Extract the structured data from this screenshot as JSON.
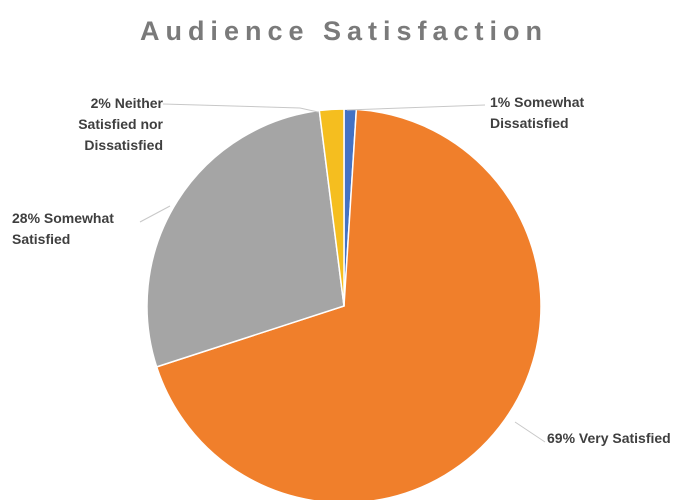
{
  "chart_data": {
    "type": "pie",
    "title": "Audience Satisfaction",
    "slices": [
      {
        "name": "Very Satisfied",
        "value": 69,
        "color": "#f07f2b",
        "label_lines": [
          "69% Very Satisfied"
        ]
      },
      {
        "name": "Somewhat Satisfied",
        "value": 28,
        "color": "#a5a5a5",
        "label_lines": [
          "28% Somewhat",
          "Satisfied"
        ]
      },
      {
        "name": "Neither Satisfied nor Dissatisfied",
        "value": 2,
        "color": "#f5be1f",
        "label_lines": [
          "2% Neither",
          "Satisfied nor",
          "Dissatisfied"
        ]
      },
      {
        "name": "Somewhat Dissatisfied",
        "value": 1,
        "color": "#4472c4",
        "label_lines": [
          "1% Somewhat",
          "Dissatisfied"
        ]
      }
    ],
    "legend": "none"
  }
}
